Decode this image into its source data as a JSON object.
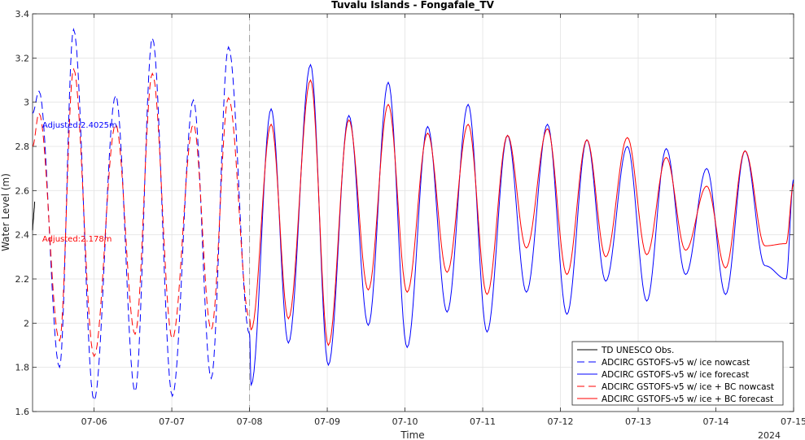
{
  "chart_data": {
    "type": "line",
    "title": "Tuvalu Islands - Fongafale_TV",
    "xlabel": "Time",
    "ylabel": "Water Level (m)",
    "year_label": "2024",
    "x_start": "07-05 05:00",
    "x_end": "07-15 00:00",
    "nowcast_end": "07-08 00:00",
    "ylim": [
      1.6,
      3.4
    ],
    "yticks": [
      "1.6",
      "1.8",
      "2",
      "2.2",
      "2.4",
      "2.6",
      "2.8",
      "3",
      "3.2",
      "3.4"
    ],
    "xticks": [
      "07-06",
      "07-07",
      "07-08",
      "07-09",
      "07-10",
      "07-11",
      "07-12",
      "07-13",
      "07-14",
      "07-15"
    ],
    "annotations": [
      {
        "text": "Adjusted:2.4025m",
        "color": "#0000ff",
        "x": "07-05 08:00",
        "y": 2.885
      },
      {
        "text": "Adjusted:2.178m",
        "color": "#ff0000",
        "x": "07-05 08:00",
        "y": 2.37
      }
    ],
    "legend_position": "bottom-right",
    "series": [
      {
        "name": "TD UNESCO Obs.",
        "color": "#000000",
        "dash": "solid",
        "x": [
          "07-05 05:00",
          "07-05 05:08",
          "07-05 05:16",
          "07-05 05:24",
          "07-05 05:32",
          "07-05 05:40"
        ],
        "y": [
          2.42,
          2.45,
          2.47,
          2.5,
          2.52,
          2.55
        ]
      },
      {
        "name": "ADCIRC GSTOFS-v5 w/ ice nowcast",
        "color": "#0000ff",
        "dash": "dashed",
        "x": [
          "07-05 05:00",
          "07-05 07:00",
          "07-05 13:20",
          "07-05 17:40",
          "07-06 00:00",
          "07-06 06:40",
          "07-06 12:40",
          "07-06 18:00",
          "07-07 00:10",
          "07-07 06:40",
          "07-07 12:10",
          "07-07 17:30",
          "07-08 00:00"
        ],
        "y": [
          2.95,
          3.05,
          1.8,
          3.33,
          1.65,
          3.03,
          1.69,
          3.29,
          1.67,
          3.01,
          1.75,
          3.25,
          1.95
        ]
      },
      {
        "name": "ADCIRC GSTOFS-v5 w/ ice forecast",
        "color": "#0000ff",
        "dash": "solid",
        "x": [
          "07-08 00:00",
          "07-08 00:30",
          "07-08 06:40",
          "07-08 12:00",
          "07-08 18:50",
          "07-09 00:20",
          "07-09 06:40",
          "07-09 12:40",
          "07-09 18:50",
          "07-10 00:40",
          "07-10 07:00",
          "07-10 13:00",
          "07-10 19:30",
          "07-11 01:20",
          "07-11 07:40",
          "07-11 13:30",
          "07-11 20:00",
          "07-12 02:00",
          "07-12 08:10",
          "07-12 14:00",
          "07-12 20:40",
          "07-13 02:40",
          "07-13 08:40",
          "07-13 14:40",
          "07-13 21:10",
          "07-14 03:00",
          "07-14 09:00",
          "07-14 15:10",
          "07-14 21:40",
          "07-15 00:00"
        ],
        "y": [
          1.95,
          1.72,
          2.97,
          1.91,
          3.17,
          1.81,
          2.94,
          1.99,
          3.09,
          1.89,
          2.89,
          2.05,
          2.99,
          1.96,
          2.85,
          2.14,
          2.9,
          2.04,
          2.83,
          2.19,
          2.8,
          2.1,
          2.79,
          2.22,
          2.7,
          2.13,
          2.78,
          2.26,
          2.2,
          2.65
        ]
      },
      {
        "name": "ADCIRC GSTOFS-v5 w/ ice + BC nowcast",
        "color": "#ff0000",
        "dash": "dashed",
        "x": [
          "07-05 05:00",
          "07-05 07:00",
          "07-05 13:20",
          "07-05 17:40",
          "07-06 00:00",
          "07-06 06:40",
          "07-06 12:40",
          "07-06 18:00",
          "07-07 00:10",
          "07-07 06:40",
          "07-07 12:10",
          "07-07 17:30",
          "07-08 00:00"
        ],
        "y": [
          2.8,
          2.95,
          1.92,
          3.15,
          1.85,
          2.9,
          1.95,
          3.13,
          1.93,
          2.9,
          1.97,
          3.02,
          2.02
        ]
      },
      {
        "name": "ADCIRC GSTOFS-v5 w/ ice + BC forecast",
        "color": "#ff0000",
        "dash": "solid",
        "x": [
          "07-08 00:00",
          "07-08 00:30",
          "07-08 06:40",
          "07-08 12:00",
          "07-08 18:50",
          "07-09 00:20",
          "07-09 06:40",
          "07-09 12:40",
          "07-09 18:50",
          "07-10 00:40",
          "07-10 07:00",
          "07-10 13:00",
          "07-10 19:30",
          "07-11 01:20",
          "07-11 07:40",
          "07-11 13:30",
          "07-11 20:00",
          "07-12 02:00",
          "07-12 08:10",
          "07-12 14:00",
          "07-12 20:40",
          "07-13 02:40",
          "07-13 08:40",
          "07-13 14:40",
          "07-13 21:10",
          "07-14 03:00",
          "07-14 09:00",
          "07-14 15:10",
          "07-14 21:40",
          "07-15 00:00"
        ],
        "y": [
          2.02,
          1.97,
          2.9,
          2.02,
          3.1,
          1.9,
          2.92,
          2.15,
          2.99,
          2.14,
          2.86,
          2.23,
          2.9,
          2.13,
          2.85,
          2.34,
          2.88,
          2.22,
          2.83,
          2.3,
          2.84,
          2.31,
          2.75,
          2.33,
          2.62,
          2.25,
          2.78,
          2.35,
          2.36,
          2.63
        ]
      }
    ]
  }
}
